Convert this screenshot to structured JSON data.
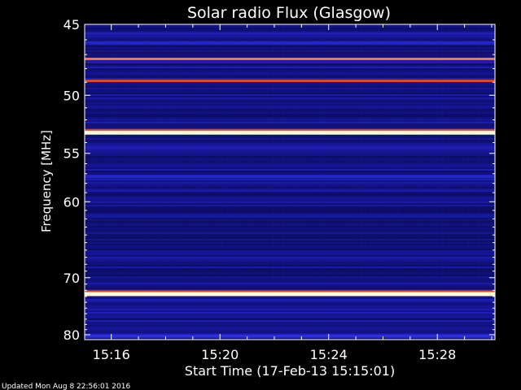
{
  "footer_text": "Updated Mon Aug  8 22:56:01 2016",
  "colors": {
    "background": "#000000",
    "axis": "#ffffff",
    "low_intensity": "#0a0a60",
    "mid_intensity": "#2b2bd8",
    "high_intensity": "#d81818",
    "peak_intensity": "#ffffcc"
  },
  "chart_data": {
    "type": "heatmap",
    "title": "Solar radio Flux (Glasgow)",
    "xlabel": "Start Time (17-Feb-13 15:15:01)",
    "ylabel": "Frequency [MHz]",
    "x_unit": "minutes after 15:15:01",
    "xlim": [
      0,
      15.1
    ],
    "ylim": [
      81,
      45
    ],
    "yscale": "reciprocal",
    "colormap": "blue-red-white",
    "grid": false,
    "x_ticks": [
      {
        "label": "15:16",
        "value": 0.98
      },
      {
        "label": "15:20",
        "value": 4.98
      },
      {
        "label": "15:24",
        "value": 8.98
      },
      {
        "label": "15:28",
        "value": 12.98
      }
    ],
    "y_ticks": [
      {
        "label": "45",
        "value": 45
      },
      {
        "label": "50",
        "value": 50
      },
      {
        "label": "55",
        "value": 55
      },
      {
        "label": "60",
        "value": 60
      },
      {
        "label": "70",
        "value": 70
      },
      {
        "label": "80",
        "value": 80
      }
    ],
    "bands": [
      {
        "freq": 45.6,
        "level": 0.45
      },
      {
        "freq": 46.2,
        "level": 0.5
      },
      {
        "freq": 47.3,
        "level": 0.85
      },
      {
        "freq": 48.9,
        "level": 0.8
      },
      {
        "freq": 53.1,
        "level": 1.0
      },
      {
        "freq": 57.3,
        "level": 0.5
      },
      {
        "freq": 66.4,
        "level": 0.38
      },
      {
        "freq": 72.6,
        "level": 1.0
      },
      {
        "freq": 76.5,
        "level": 0.4
      },
      {
        "freq": 80.3,
        "level": 0.55
      }
    ]
  }
}
